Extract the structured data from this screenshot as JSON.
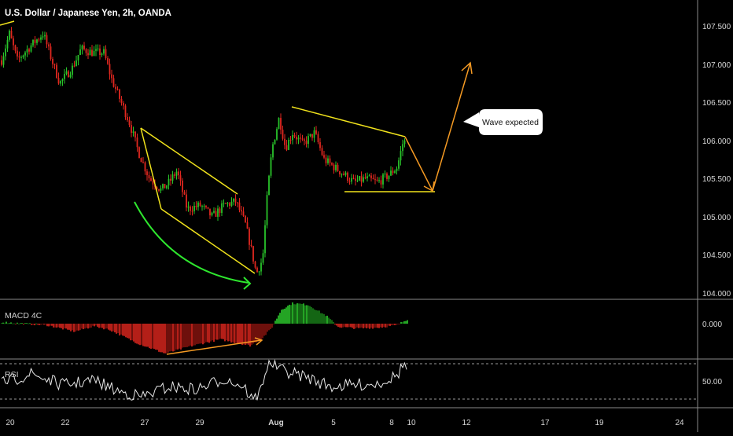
{
  "header": {
    "title": "U.S. Dollar / Japanese Yen, 2h, OANDA"
  },
  "annotation": {
    "callout_text": "Wave expected"
  },
  "indicators": {
    "macd_label": "MACD 4C",
    "rsi_label": "RSI"
  },
  "colors": {
    "up": "#29c42a",
    "down": "#e0271f",
    "trendline": "#f0e21c",
    "projection": "#f59a23",
    "arc": "#2ee62e",
    "divider": "#8a8a8a"
  },
  "chart_data": [
    {
      "type": "candlestick",
      "title": "U.S. Dollar / Japanese Yen, 2h, OANDA",
      "ylim": [
        103.95,
        107.8
      ],
      "y_ticks": [
        "107.500",
        "107.000",
        "106.500",
        "106.000",
        "105.500",
        "105.000",
        "104.500",
        "104.000"
      ],
      "x_ticks": [
        "20",
        "22",
        "27",
        "29",
        "Aug",
        "5",
        "8",
        "10",
        "12",
        "17",
        "19",
        "24"
      ],
      "key_prices": {
        "swing_high": 107.45,
        "swing_low": 104.2,
        "post_rally_high": 106.4,
        "base_support": 105.3,
        "projected_target": 107.05
      }
    },
    {
      "type": "histogram",
      "name": "MACD 4C",
      "y_ticks": [
        "0.000"
      ],
      "x_ticks": [
        "20",
        "22",
        "27",
        "29",
        "Aug",
        "5",
        "8",
        "10",
        "12",
        "17",
        "19",
        "24"
      ]
    },
    {
      "type": "line",
      "name": "RSI",
      "y_ticks": [
        "50.00"
      ],
      "bands": [
        70,
        30
      ]
    }
  ]
}
